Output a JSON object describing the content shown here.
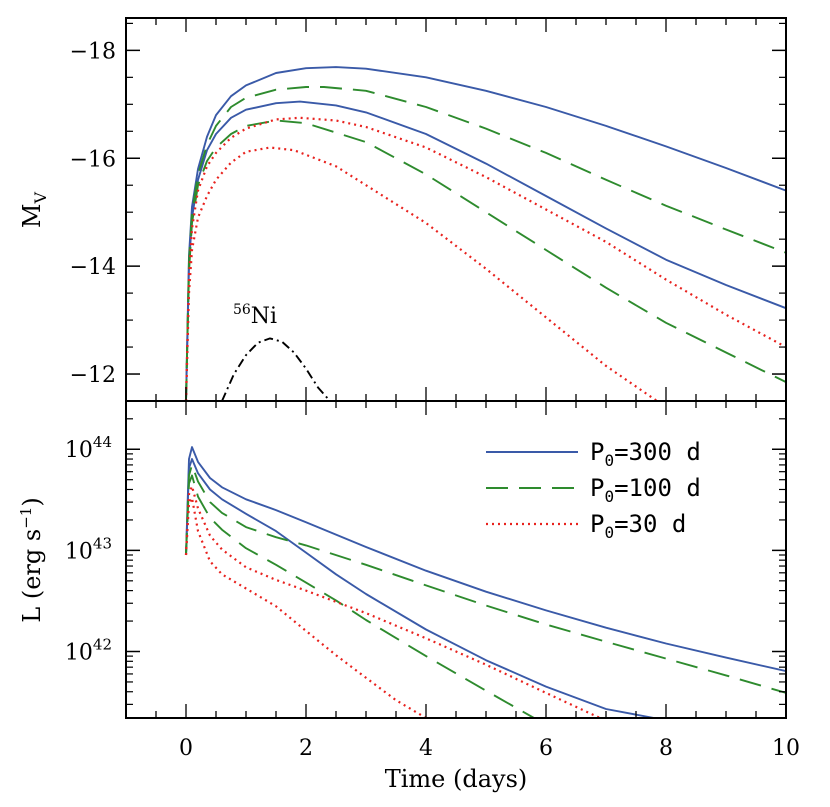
{
  "chart_data": [
    {
      "panel": "top",
      "type": "line",
      "xlabel": "Time (days)",
      "ylabel": "M",
      "ylabel_subscript": "V",
      "xlim": [
        -1,
        10
      ],
      "ylim": [
        -11.5,
        -18.6
      ],
      "yticks": [
        -18,
        -16,
        -14,
        -12
      ],
      "ytick_labels": [
        "−18",
        "−16",
        "−14",
        "−12"
      ],
      "xticks": [
        0,
        2,
        4,
        6,
        8,
        10
      ],
      "grid": false,
      "annotation": {
        "sup": "56",
        "text": "Ni",
        "x": 1.15,
        "y": -12.95
      },
      "series": [
        {
          "name": "P0=300 d",
          "style": "solid",
          "color": "#3a5aa8",
          "x": [
            0.0,
            0.05,
            0.1,
            0.2,
            0.35,
            0.5,
            0.75,
            1.0,
            1.5,
            2.0,
            2.5,
            3.0,
            4.0,
            5.0,
            6.0,
            7.0,
            8.0,
            9.0,
            10.0
          ],
          "y": [
            -11.5,
            -14.2,
            -15.1,
            -15.8,
            -16.4,
            -16.8,
            -17.15,
            -17.35,
            -17.58,
            -17.67,
            -17.69,
            -17.66,
            -17.5,
            -17.25,
            -16.95,
            -16.6,
            -16.22,
            -15.82,
            -15.4
          ]
        },
        {
          "name": "P0=300 d",
          "style": "solid",
          "color": "#3a5aa8",
          "x": [
            0.0,
            0.05,
            0.1,
            0.2,
            0.35,
            0.5,
            0.75,
            1.0,
            1.5,
            1.9,
            2.5,
            3.0,
            4.0,
            5.0,
            6.0,
            7.0,
            8.0,
            9.0,
            10.0
          ],
          "y": [
            -11.5,
            -14.0,
            -14.9,
            -15.6,
            -16.15,
            -16.45,
            -16.75,
            -16.9,
            -17.02,
            -17.05,
            -16.98,
            -16.85,
            -16.45,
            -15.9,
            -15.3,
            -14.7,
            -14.12,
            -13.65,
            -13.22
          ]
        },
        {
          "name": "P0=100 d",
          "style": "dashed",
          "color": "#2e8b2e",
          "x": [
            0.0,
            0.05,
            0.1,
            0.2,
            0.35,
            0.5,
            0.75,
            1.0,
            1.5,
            2.0,
            2.3,
            3.0,
            4.0,
            5.0,
            6.0,
            7.0,
            8.0,
            9.0,
            10.0
          ],
          "y": [
            -11.5,
            -14.1,
            -15.0,
            -15.7,
            -16.25,
            -16.6,
            -16.95,
            -17.12,
            -17.27,
            -17.32,
            -17.32,
            -17.25,
            -16.95,
            -16.55,
            -16.1,
            -15.6,
            -15.12,
            -14.68,
            -14.25
          ]
        },
        {
          "name": "P0=100 d",
          "style": "dashed",
          "color": "#2e8b2e",
          "x": [
            0.0,
            0.05,
            0.1,
            0.2,
            0.35,
            0.5,
            0.75,
            1.0,
            1.5,
            2.0,
            3.0,
            4.0,
            5.0,
            6.0,
            7.0,
            8.0,
            9.0,
            10.0
          ],
          "y": [
            -11.5,
            -13.9,
            -14.8,
            -15.5,
            -15.95,
            -16.2,
            -16.45,
            -16.6,
            -16.7,
            -16.65,
            -16.3,
            -15.7,
            -15.0,
            -14.3,
            -13.6,
            -12.95,
            -12.4,
            -11.85
          ]
        },
        {
          "name": "P0=30 d",
          "style": "dotted",
          "color": "#e8221e",
          "x": [
            0.0,
            0.05,
            0.1,
            0.2,
            0.35,
            0.5,
            0.75,
            1.0,
            1.5,
            1.9,
            2.5,
            3.0,
            4.0,
            5.0,
            6.0,
            7.0,
            8.0,
            9.0,
            10.0
          ],
          "y": [
            -11.5,
            -13.8,
            -14.7,
            -15.4,
            -15.85,
            -16.1,
            -16.38,
            -16.55,
            -16.72,
            -16.75,
            -16.7,
            -16.58,
            -16.2,
            -15.65,
            -15.05,
            -14.45,
            -13.75,
            -13.1,
            -12.5
          ]
        },
        {
          "name": "P0=30 d",
          "style": "dotted",
          "color": "#e8221e",
          "x": [
            0.0,
            0.05,
            0.1,
            0.2,
            0.35,
            0.5,
            0.75,
            1.0,
            1.4,
            1.8,
            2.5,
            3.0,
            4.0,
            5.0,
            6.0,
            7.0,
            7.85
          ],
          "y": [
            -11.5,
            -13.5,
            -14.3,
            -14.9,
            -15.3,
            -15.6,
            -15.92,
            -16.12,
            -16.2,
            -16.15,
            -15.85,
            -15.5,
            -14.8,
            -13.95,
            -13.05,
            -12.15,
            -11.5
          ]
        },
        {
          "name": "56Ni",
          "style": "dashdot",
          "color": "#000000",
          "x": [
            0.6,
            0.8,
            1.0,
            1.2,
            1.4,
            1.6,
            1.8,
            2.0,
            2.2,
            2.4
          ],
          "y": [
            -11.5,
            -12.0,
            -12.35,
            -12.58,
            -12.66,
            -12.6,
            -12.4,
            -12.1,
            -11.75,
            -11.5
          ]
        }
      ]
    },
    {
      "panel": "bottom",
      "type": "line",
      "xlabel": "Time (days)",
      "ylabel": "L (erg s",
      "ylabel_sup": "−1",
      "ylabel_close": ")",
      "yscale": "log",
      "xlim": [
        -1,
        10
      ],
      "ylim": [
        2.2e+41,
        3e+44
      ],
      "yticks": [
        1e+44,
        1e+43,
        1e+42
      ],
      "ytick_labels": [
        {
          "base": "10",
          "exp": "44"
        },
        {
          "base": "10",
          "exp": "43"
        },
        {
          "base": "10",
          "exp": "42"
        }
      ],
      "xticks": [
        0,
        2,
        4,
        6,
        8,
        10
      ],
      "xtick_labels": [
        "0",
        "2",
        "4",
        "6",
        "8",
        "10"
      ],
      "grid": false,
      "legend": {
        "position": "top-right",
        "entries": [
          {
            "label": "P",
            "sub": "0",
            "rest": "=300 d",
            "style": "solid",
            "color": "#3a5aa8"
          },
          {
            "label": "P",
            "sub": "0",
            "rest": "=100 d",
            "style": "dashed",
            "color": "#2e8b2e"
          },
          {
            "label": "P",
            "sub": "0",
            "rest": "=30 d",
            "style": "dotted",
            "color": "#e8221e"
          }
        ]
      },
      "series": [
        {
          "name": "P0=300 d",
          "style": "solid",
          "color": "#3a5aa8",
          "x": [
            0.0,
            0.05,
            0.1,
            0.2,
            0.4,
            0.6,
            1.0,
            1.5,
            2.0,
            3.0,
            4.0,
            5.0,
            6.0,
            7.0,
            8.0,
            9.0,
            10.0
          ],
          "y": [
            9e+42,
            8e+43,
            1.05e+44,
            7.5e+43,
            5.2e+43,
            4.2e+43,
            3.2e+43,
            2.5e+43,
            1.9e+43,
            1.08e+43,
            6.3e+42,
            3.9e+42,
            2.55e+42,
            1.72e+42,
            1.2e+42,
            8.7e+41,
            6.4e+41
          ]
        },
        {
          "name": "P0=300 d",
          "style": "solid",
          "color": "#3a5aa8",
          "x": [
            0.0,
            0.05,
            0.1,
            0.2,
            0.4,
            0.6,
            1.0,
            1.5,
            2.0,
            2.5,
            3.0,
            4.0,
            5.0,
            6.0,
            7.0,
            7.8
          ],
          "y": [
            9e+42,
            6.5e+43,
            8e+43,
            5.8e+43,
            4e+43,
            3.2e+43,
            2.3e+43,
            1.55e+43,
            9.5e+42,
            5.8e+42,
            3.7e+42,
            1.65e+42,
            8.2e+41,
            4.5e+41,
            2.7e+41,
            2.2e+41
          ]
        },
        {
          "name": "P0=100 d",
          "style": "dashed",
          "color": "#2e8b2e",
          "x": [
            0.0,
            0.05,
            0.1,
            0.2,
            0.4,
            0.6,
            1.0,
            1.5,
            2.0,
            3.0,
            4.0,
            5.0,
            6.0,
            7.0,
            8.0,
            9.0,
            10.0
          ],
          "y": [
            9e+42,
            5.5e+43,
            7e+43,
            4.8e+43,
            3e+43,
            2.35e+43,
            1.7e+43,
            1.35e+43,
            1.12e+43,
            7.2e+42,
            4.5e+42,
            2.85e+42,
            1.85e+42,
            1.25e+42,
            8.5e+41,
            5.8e+41,
            3.9e+41
          ]
        },
        {
          "name": "P0=100 d",
          "style": "dashed",
          "color": "#2e8b2e",
          "x": [
            0.0,
            0.05,
            0.1,
            0.2,
            0.4,
            0.6,
            1.0,
            1.5,
            2.0,
            2.5,
            3.0,
            4.0,
            5.0,
            5.8
          ],
          "y": [
            9e+42,
            4.6e+43,
            5.5e+43,
            3.4e+43,
            2.1e+43,
            1.6e+43,
            1.05e+43,
            7.2e+42,
            4.8e+42,
            3.2e+42,
            2.05e+42,
            9e+41,
            4.1e+41,
            2.2e+41
          ]
        },
        {
          "name": "P0=30 d",
          "style": "dotted",
          "color": "#e8221e",
          "x": [
            0.0,
            0.05,
            0.1,
            0.2,
            0.4,
            0.6,
            1.0,
            1.5,
            2.0,
            3.0,
            4.0,
            5.0,
            6.0,
            6.9
          ],
          "y": [
            9e+42,
            3.6e+43,
            4.3e+43,
            2.6e+43,
            1.4e+43,
            1.02e+43,
            6.8e+42,
            5.1e+42,
            4e+42,
            2.4e+42,
            1.35e+42,
            7.4e+41,
            3.9e+41,
            2.2e+41
          ]
        },
        {
          "name": "P0=30 d",
          "style": "dotted",
          "color": "#e8221e",
          "x": [
            0.0,
            0.05,
            0.1,
            0.2,
            0.4,
            0.6,
            1.0,
            1.5,
            2.0,
            2.5,
            3.0,
            3.5,
            4.0
          ],
          "y": [
            9e+42,
            2.9e+43,
            3.3e+43,
            1.55e+43,
            7.8e+42,
            5.8e+42,
            4.2e+42,
            2.8e+42,
            1.6e+42,
            9.2e+41,
            5.5e+41,
            3.3e+41,
            2.2e+41
          ]
        }
      ]
    }
  ]
}
